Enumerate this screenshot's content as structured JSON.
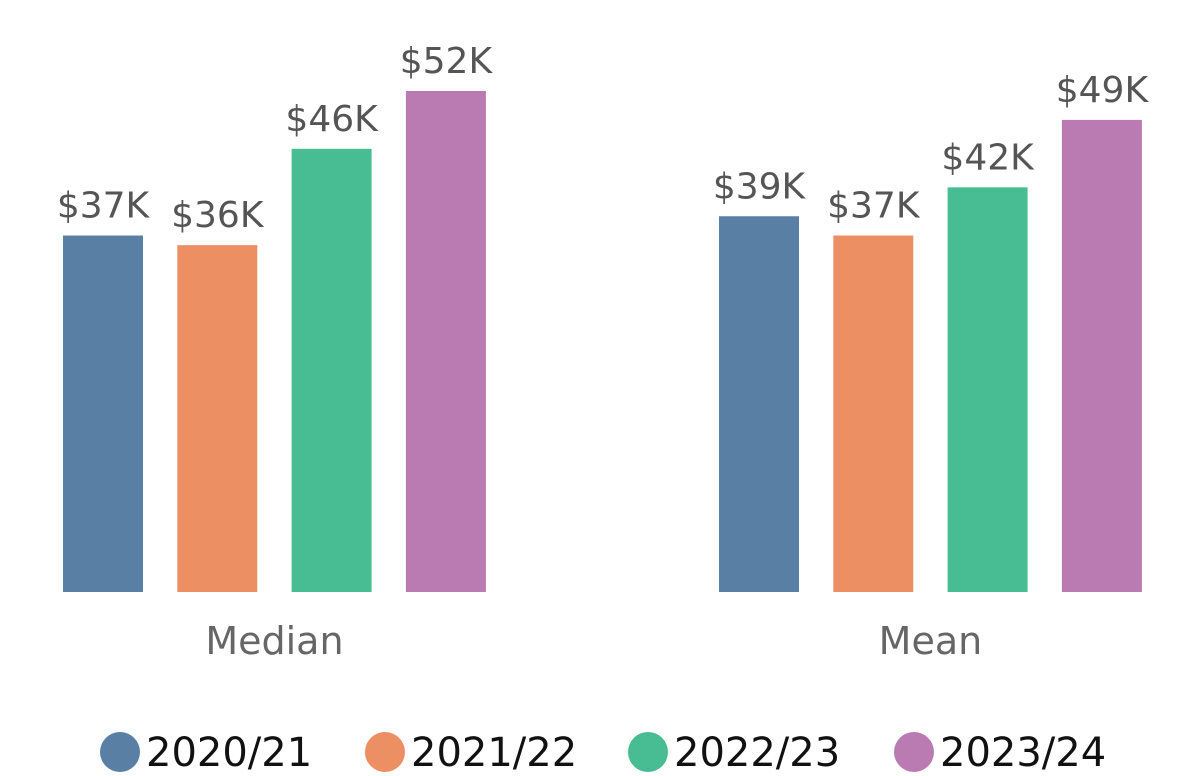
{
  "chart_data": {
    "type": "bar",
    "categories": [
      "Median",
      "Mean"
    ],
    "series": [
      {
        "name": "2020/21",
        "color": "#5a7fa4",
        "values": [
          37,
          39
        ],
        "value_labels": [
          "$37K",
          "$39K"
        ]
      },
      {
        "name": "2021/22",
        "color": "#ec8f62",
        "values": [
          36,
          37
        ],
        "value_labels": [
          "$36K",
          "$37K"
        ]
      },
      {
        "name": "2022/23",
        "color": "#48bc93",
        "values": [
          46,
          42
        ],
        "value_labels": [
          "$46K",
          "$42K"
        ]
      },
      {
        "name": "2023/24",
        "color": "#b97bb2",
        "values": [
          52,
          49
        ],
        "value_labels": [
          "$52K",
          "$49K"
        ]
      }
    ]
  }
}
